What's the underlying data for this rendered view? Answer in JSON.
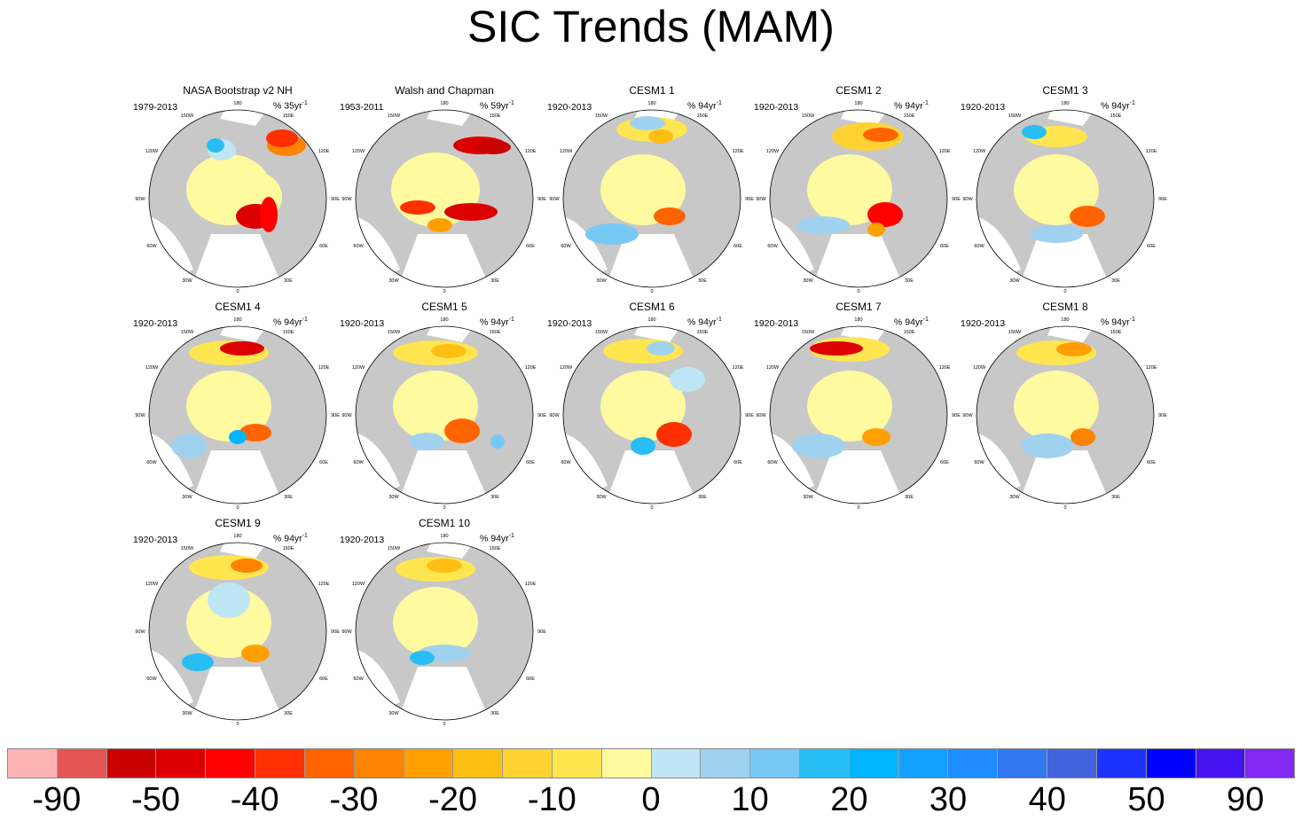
{
  "title": "SIC Trends (MAM)",
  "chart_data": {
    "type": "heatmap",
    "title": "SIC Trends (MAM)",
    "projection": "north polar stereographic",
    "map_longitude_labels": [
      "180",
      "150W",
      "150E",
      "120W",
      "120E",
      "90W",
      "90E",
      "60W",
      "60E",
      "30W",
      "30E",
      "0"
    ],
    "panels": [
      {
        "name": "NASA Bootstrap v2 NH",
        "period": "1979-2013",
        "units_prefix": "% 35yr",
        "units_sup": "-1"
      },
      {
        "name": "Walsh and Chapman",
        "period": "1953-2011",
        "units_prefix": "% 59yr",
        "units_sup": "-1"
      },
      {
        "name": "CESM1 1",
        "period": "1920-2013",
        "units_prefix": "% 94yr",
        "units_sup": "-1"
      },
      {
        "name": "CESM1 2",
        "period": "1920-2013",
        "units_prefix": "% 94yr",
        "units_sup": "-1"
      },
      {
        "name": "CESM1 3",
        "period": "1920-2013",
        "units_prefix": "% 94yr",
        "units_sup": "-1"
      },
      {
        "name": "CESM1 4",
        "period": "1920-2013",
        "units_prefix": "% 94yr",
        "units_sup": "-1"
      },
      {
        "name": "CESM1 5",
        "period": "1920-2013",
        "units_prefix": "% 94yr",
        "units_sup": "-1"
      },
      {
        "name": "CESM1 6",
        "period": "1920-2013",
        "units_prefix": "% 94yr",
        "units_sup": "-1"
      },
      {
        "name": "CESM1 7",
        "period": "1920-2013",
        "units_prefix": "% 94yr",
        "units_sup": "-1"
      },
      {
        "name": "CESM1 8",
        "period": "1920-2013",
        "units_prefix": "% 94yr",
        "units_sup": "-1"
      },
      {
        "name": "CESM1 9",
        "period": "1920-2013",
        "units_prefix": "% 94yr",
        "units_sup": "-1"
      },
      {
        "name": "CESM1 10",
        "period": "1920-2013",
        "units_prefix": "% 94yr",
        "units_sup": "-1"
      }
    ],
    "colorbar": {
      "colors": [
        "#ffb4b4",
        "#e45656",
        "#c80000",
        "#dc0000",
        "#ff0000",
        "#ff3000",
        "#ff6400",
        "#ff8200",
        "#ffa000",
        "#ffbe14",
        "#ffd232",
        "#ffe650",
        "#fffaa0",
        "#bee6f5",
        "#a0d2f0",
        "#78c8f5",
        "#28bef5",
        "#00b4ff",
        "#14a0ff",
        "#1e8cff",
        "#3278f0",
        "#4164dc",
        "#1e32ff",
        "#0000ff",
        "#4614f0",
        "#8228f0"
      ],
      "tick_labels": [
        "-90",
        "-50",
        "-40",
        "-30",
        "-20",
        "-10",
        "0",
        "10",
        "20",
        "30",
        "40",
        "50",
        "90"
      ]
    }
  }
}
